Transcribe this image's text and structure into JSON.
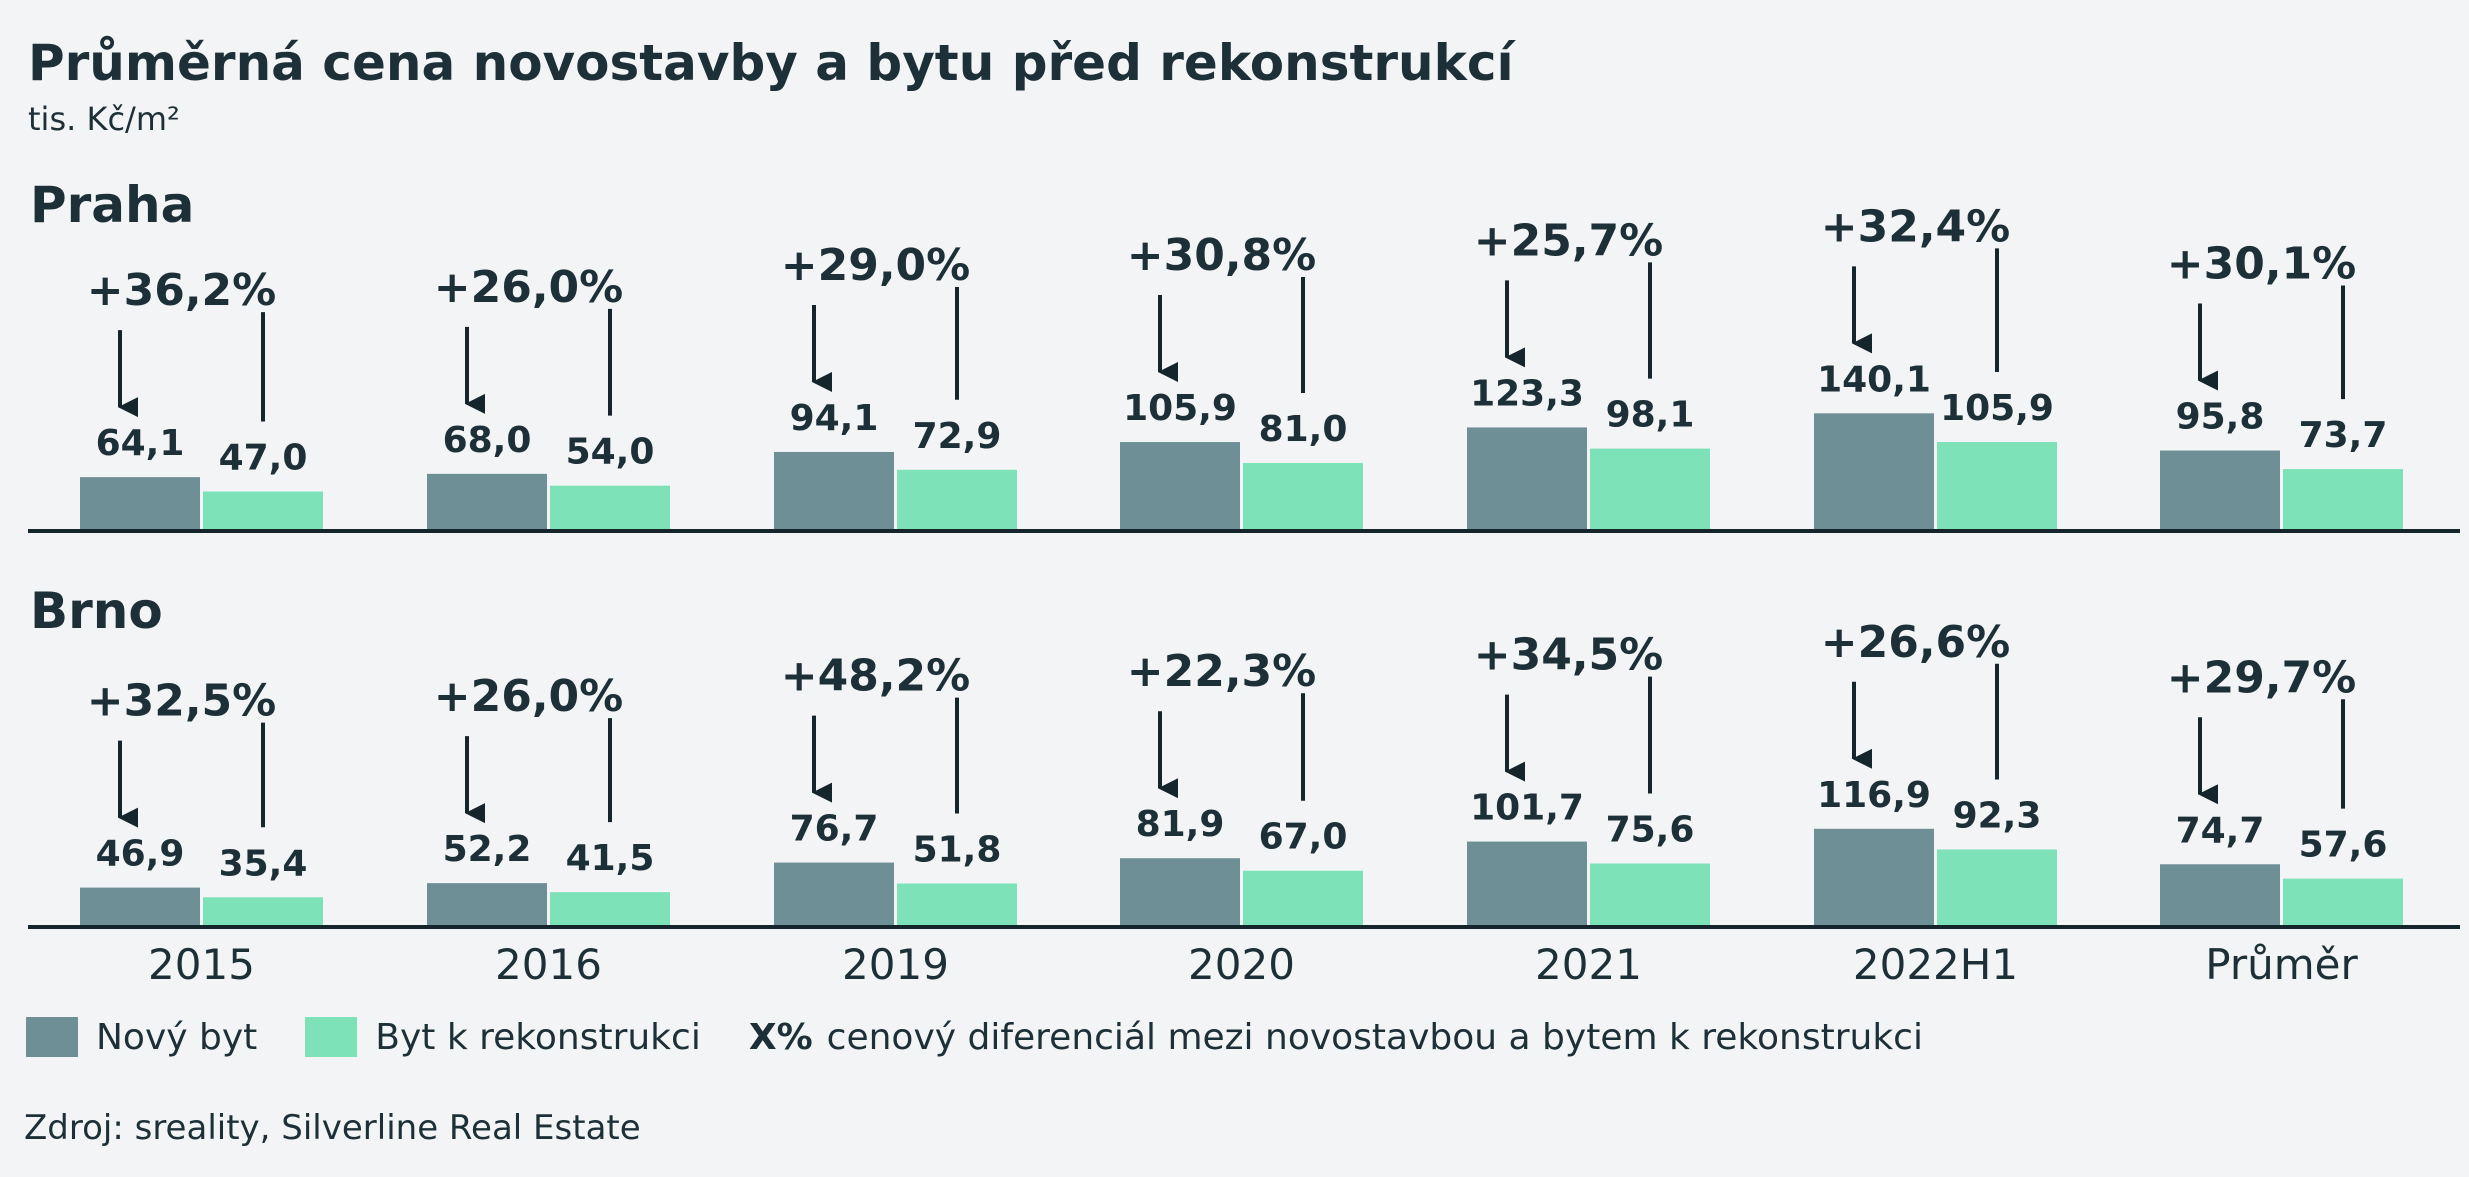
{
  "title": "Průměrná cena novostavby a bytu před rekonstrukcí",
  "subtitle": "tis. Kč/m²",
  "legend": {
    "new_label": "Nový byt",
    "reco_label": "Byt k rekonstrukci",
    "note_bold": "X%",
    "note_text": "cenový diferenciál mezi novostavbou a bytem k rekonstrukci"
  },
  "source": "Zdroj: sreality, Silverline Real Estate",
  "colors": {
    "new": "#6e8f96",
    "reco": "#7ee2b8",
    "axis": "#14252b",
    "text": "#1d3038"
  },
  "chart_data": [
    {
      "type": "bar",
      "title": "Praha",
      "categories": [
        "2015",
        "2016",
        "2019",
        "2020",
        "2021",
        "2022H1",
        "Průměr"
      ],
      "series": [
        {
          "name": "Nový byt",
          "values_label": [
            "64,1",
            "68,0",
            "94,1",
            "105,9",
            "123,3",
            "140,1",
            "95,8"
          ],
          "values": [
            64.1,
            68.0,
            94.1,
            105.9,
            123.3,
            140.1,
            95.8
          ]
        },
        {
          "name": "Byt k rekonstrukci",
          "values_label": [
            "47,0",
            "54,0",
            "72,9",
            "81,0",
            "98,1",
            "105,9",
            "73,7"
          ],
          "values": [
            47.0,
            54.0,
            72.9,
            81.0,
            98.1,
            105.9,
            73.7
          ]
        }
      ],
      "differentials": [
        "+36,2%",
        "+26,0%",
        "+29,0%",
        "+30,8%",
        "+25,7%",
        "+32,4%",
        "+30,1%"
      ]
    },
    {
      "type": "bar",
      "title": "Brno",
      "categories": [
        "2015",
        "2016",
        "2019",
        "2020",
        "2021",
        "2022H1",
        "Průměr"
      ],
      "series": [
        {
          "name": "Nový byt",
          "values_label": [
            "46,9",
            "52,2",
            "76,7",
            "81,9",
            "101,7",
            "116,9",
            "74,7"
          ],
          "values": [
            46.9,
            52.2,
            76.7,
            81.9,
            101.7,
            116.9,
            74.7
          ]
        },
        {
          "name": "Byt k rekonstrukci",
          "values_label": [
            "35,4",
            "41,5",
            "51,8",
            "67,0",
            "75,6",
            "92,3",
            "57,6"
          ],
          "values": [
            35.4,
            41.5,
            51.8,
            67.0,
            75.6,
            92.3,
            57.6
          ]
        }
      ],
      "differentials": [
        "+32,5%",
        "+26,0%",
        "+48,2%",
        "+22,3%",
        "+34,5%",
        "+26,6%",
        "+29,7%"
      ]
    }
  ]
}
